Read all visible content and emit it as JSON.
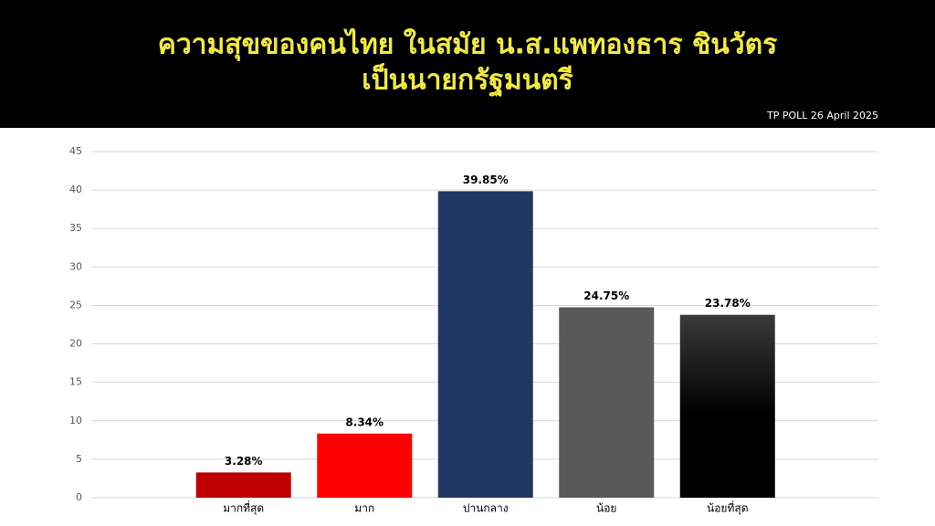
{
  "chart_data": {
    "type": "bar",
    "title": [
      "ความสุขของคนไทย ในสมัย น.ส.แพทองธาร ชินวัตร",
      "เป็นนายกรัฐมนตรี"
    ],
    "subtitle": "TP POLL 26 April 2025",
    "categories": [
      "มากที่สุด",
      "มาก",
      "ปานกลาง",
      "น้อย",
      "น้อยที่สุด"
    ],
    "values": [
      3.28,
      8.34,
      39.85,
      24.75,
      23.78
    ],
    "value_labels": [
      "3.28%",
      "8.34%",
      "39.85%",
      "24.75%",
      "23.78%"
    ],
    "colors": [
      "#c00000",
      "#ff0000",
      "#1f3864",
      "#595959",
      "#000000"
    ],
    "ylim": [
      0,
      45
    ],
    "yticks": [
      0,
      5,
      10,
      15,
      20,
      25,
      30,
      35,
      40,
      45
    ],
    "grid": true
  }
}
